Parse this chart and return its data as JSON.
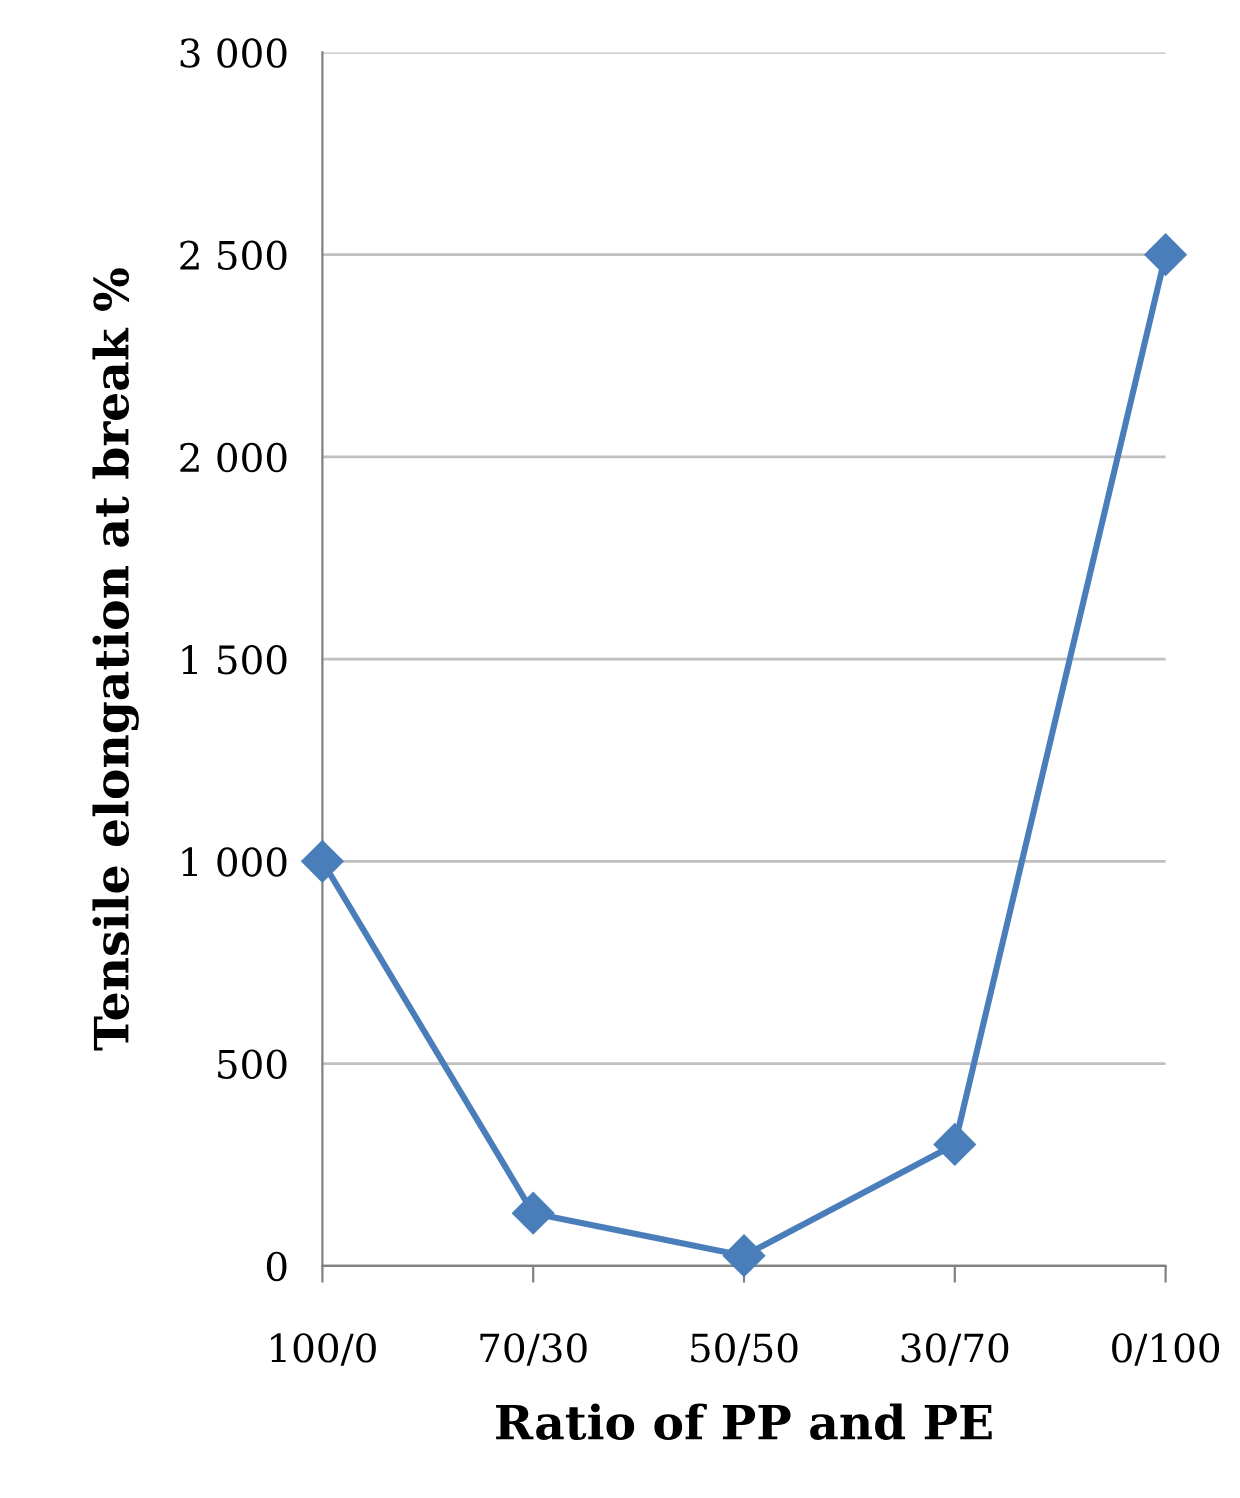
{
  "chart_data": {
    "type": "line",
    "xlabel": "Ratio of PP and PE",
    "ylabel": "Tensile elongation at break %",
    "categories": [
      "100/0",
      "70/30",
      "50/50",
      "30/70",
      "0/100"
    ],
    "series": [
      {
        "color": "#4a7ebb",
        "values": [
          1000,
          130,
          25,
          300,
          2500
        ]
      }
    ],
    "ylim": [
      0,
      3000
    ],
    "yticks": [
      0,
      500,
      {
        "value": 1000,
        "label": "1 000"
      },
      {
        "value": 1500,
        "label": "1 500"
      },
      {
        "value": 2000,
        "label": "2 000"
      },
      {
        "value": 2500,
        "label": "2 500"
      },
      {
        "value": 3000,
        "label": "3 000"
      }
    ],
    "grid": "y",
    "marker": "diamond",
    "line_style": "solid",
    "legend": false
  }
}
